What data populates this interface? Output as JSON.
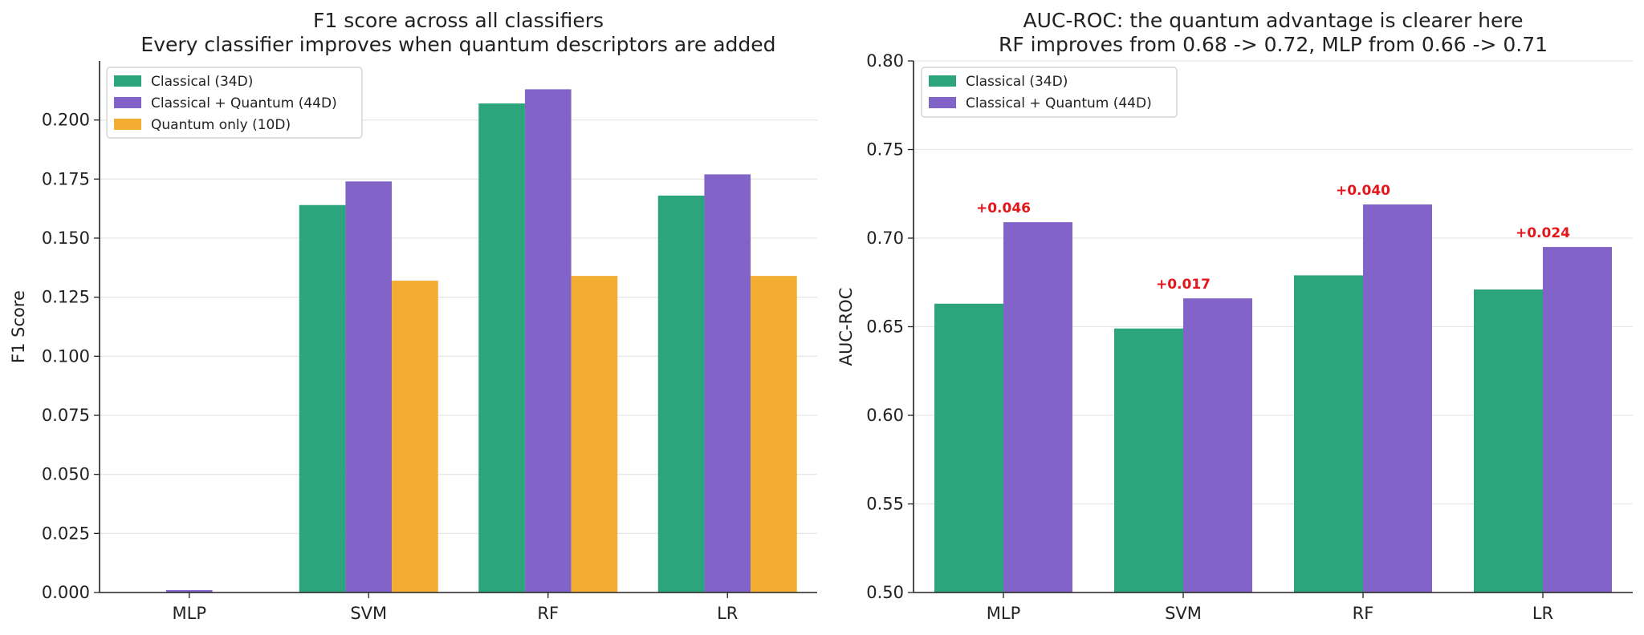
{
  "colors": {
    "classical": "#2ca57d",
    "combined": "#8264c9",
    "quantum": "#f4ad33",
    "delta": "#e3171b"
  },
  "chart_data": [
    {
      "type": "bar",
      "title": "F1 score across all classifiers",
      "subtitle": "Every classifier improves when quantum descriptors are added",
      "xlabel": "",
      "ylabel": "F1 Score",
      "categories": [
        "MLP",
        "SVM",
        "RF",
        "LR"
      ],
      "ylim": [
        0,
        0.225
      ],
      "yticks": [
        "0.000",
        "0.025",
        "0.050",
        "0.075",
        "0.100",
        "0.125",
        "0.150",
        "0.175",
        "0.200"
      ],
      "grid": true,
      "legend_position": "top-left",
      "series": [
        {
          "name": "Classical (34D)",
          "color_key": "classical",
          "values": [
            0.0,
            0.164,
            0.207,
            0.168
          ]
        },
        {
          "name": "Classical + Quantum (44D)",
          "color_key": "combined",
          "values": [
            0.001,
            0.174,
            0.213,
            0.177
          ]
        },
        {
          "name": "Quantum only (10D)",
          "color_key": "quantum",
          "values": [
            0.0,
            0.132,
            0.134,
            0.134
          ]
        }
      ]
    },
    {
      "type": "bar",
      "title": "AUC-ROC: the quantum advantage is clearer here",
      "subtitle": "RF improves from 0.68 -> 0.72, MLP from 0.66 -> 0.71",
      "xlabel": "",
      "ylabel": "AUC-ROC",
      "categories": [
        "MLP",
        "SVM",
        "RF",
        "LR"
      ],
      "ylim": [
        0.5,
        0.8
      ],
      "yticks": [
        "0.50",
        "0.55",
        "0.60",
        "0.65",
        "0.70",
        "0.75",
        "0.80"
      ],
      "grid": true,
      "legend_position": "top-left",
      "series": [
        {
          "name": "Classical (34D)",
          "color_key": "classical",
          "values": [
            0.663,
            0.649,
            0.679,
            0.671
          ]
        },
        {
          "name": "Classical + Quantum (44D)",
          "color_key": "combined",
          "values": [
            0.709,
            0.666,
            0.719,
            0.695
          ]
        }
      ],
      "annotations": [
        "+0.046",
        "+0.017",
        "+0.040",
        "+0.024"
      ]
    }
  ]
}
